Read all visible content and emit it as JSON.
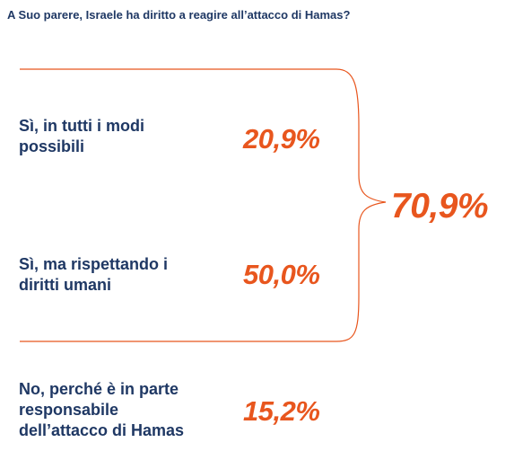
{
  "question": "A Suo parere, Israele ha diritto a reagire all’attacco di Hamas?",
  "chart_data": {
    "type": "table",
    "title": "A Suo parere, Israele ha diritto a reagire all’attacco di Hamas?",
    "categories": [
      "Sì, in tutti i modi possibili",
      "Sì, ma rispettando i diritti umani",
      "No, perché è in parte responsabile dell’attacco di Hamas"
    ],
    "values": [
      20.9,
      50.0,
      15.2
    ],
    "value_labels": [
      "20,9%",
      "50,0%",
      "15,2%"
    ],
    "options": [
      {
        "label_lines": [
          "Sì, in tutti i modi",
          "possibili"
        ],
        "value": "20,9%"
      },
      {
        "label_lines": [
          "Sì, ma rispettando i",
          "diritti umani"
        ],
        "value": "50,0%"
      },
      {
        "label_lines": [
          "No, perché è in parte",
          "responsabile",
          "dell’attacco di Hamas"
        ],
        "value": "15,2%"
      }
    ],
    "group_total": {
      "value": 70.9,
      "label": "70,9%"
    }
  },
  "colors": {
    "text": "#1f3864",
    "accent": "#e8561e"
  }
}
